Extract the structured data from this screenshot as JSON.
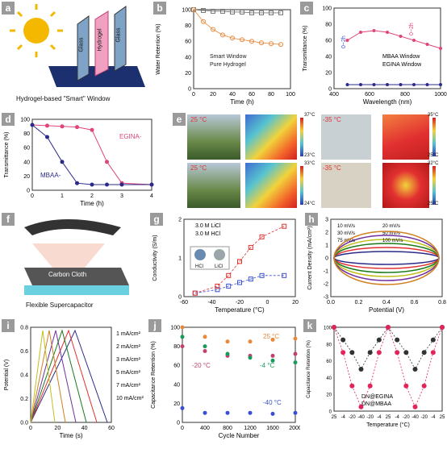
{
  "colors": {
    "orange": "#e8883a",
    "pink": "#e0457a",
    "navy": "#2b2b8a",
    "blue": "#3a4fd0",
    "gray": "#777777"
  },
  "panel_labels": [
    "a",
    "b",
    "c",
    "d",
    "e",
    "f",
    "g",
    "h",
    "i",
    "j",
    "k"
  ],
  "a": {
    "caption": "Hydrogel-based \"Smart\" Window",
    "layers": [
      "Glass",
      "Hydrogel",
      "Glass"
    ]
  },
  "b": {
    "xlabel": "Time (h)",
    "ylabel": "Water Retention (%)",
    "legend": [
      "Smart Window",
      "Pure Hydrogel"
    ],
    "xticks": [
      "0",
      "20",
      "40",
      "60",
      "80",
      "100"
    ],
    "yticks": [
      "0",
      "20",
      "40",
      "60",
      "80",
      "100"
    ]
  },
  "c": {
    "xlabel": "Wavelength (nm)",
    "ylabel": "Transmittance (%)",
    "legend": [
      "MBAA Window",
      "EGINA Window"
    ],
    "xticks": [
      "400",
      "600",
      "800",
      "1000"
    ],
    "yticks": [
      "0",
      "20",
      "40",
      "60",
      "80",
      "100"
    ],
    "annotations": [
      "0~2h",
      "0~2h"
    ]
  },
  "d": {
    "xlabel": "Time (h)",
    "ylabel": "Transmittance (%)",
    "series_labels": [
      "EGINA-",
      "MBAA-"
    ],
    "xticks": [
      "0",
      "1",
      "2",
      "3",
      "4"
    ],
    "yticks": [
      "0",
      "20",
      "40",
      "60",
      "80",
      "100"
    ]
  },
  "e": {
    "temps_left": [
      "25 °C",
      "25 °C"
    ],
    "temps_right": [
      "-35 °C",
      "-35 °C"
    ],
    "scale1": [
      "37°C",
      "23°C"
    ],
    "scale2": [
      "33°C",
      "24°C"
    ],
    "scale3": [
      "35°C",
      "25°C"
    ],
    "scale4": [
      "32°C",
      "25°C"
    ]
  },
  "f": {
    "caption": "Flexible Supercapacitor",
    "layer_label": "Carbon Cloth"
  },
  "g": {
    "xlabel": "Temperature (°C)",
    "ylabel": "Conductivity (S/m)",
    "legend": [
      "3.0 M LiCl",
      "3.0 M HCl"
    ],
    "xticks": [
      "-60",
      "-40",
      "-20",
      "0",
      "20"
    ],
    "yticks": [
      "0",
      "1",
      "2"
    ],
    "inset": [
      "HCl",
      "LiCl"
    ]
  },
  "h": {
    "xlabel": "Potential (V)",
    "ylabel": "Current Density (mA/cm²)",
    "legend": [
      "10 mV/s",
      "20 mV/s",
      "30 mV/s",
      "50 mV/s",
      "75 mV/s",
      "100 mV/s"
    ],
    "xticks": [
      "0.0",
      "0.2",
      "0.4",
      "0.6",
      "0.8"
    ],
    "yticks": [
      "-3",
      "-2",
      "-1",
      "0",
      "1",
      "2",
      "3"
    ]
  },
  "i": {
    "xlabel": "Time (s)",
    "ylabel": "Potential (V)",
    "legend": [
      "1 mA/cm²",
      "2 mA/cm²",
      "3 mA/cm²",
      "5 mA/cm²",
      "7 mA/cm²",
      "10 mA/cm²"
    ],
    "xticks": [
      "0",
      "20",
      "40",
      "60"
    ],
    "yticks": [
      "0.0",
      "0.2",
      "0.4",
      "0.6",
      "0.8"
    ]
  },
  "j": {
    "xlabel": "Cycle Number",
    "ylabel": "Capacitance Retention (%)",
    "labels": [
      "25 °C",
      "-20 °C",
      "-4 °C",
      "-40 °C"
    ],
    "xticks": [
      "0",
      "400",
      "800",
      "1200",
      "1600",
      "2000"
    ],
    "yticks": [
      "0",
      "20",
      "40",
      "60",
      "80",
      "100"
    ]
  },
  "k": {
    "xlabel": "Temperature (°C)",
    "ylabel": "Capacitance Retention (%)",
    "legend": [
      "DN@EGINA",
      "DN@MBAA"
    ],
    "xticks": [
      "25",
      "-4",
      "-20",
      "-40",
      "-20",
      "-4",
      "25",
      "-4",
      "-20",
      "-40",
      "-20",
      "-4",
      "25"
    ],
    "yticks": [
      "0",
      "20",
      "40",
      "60",
      "80",
      "100"
    ]
  },
  "chart_data": [
    {
      "type": "scatter",
      "panel": "b",
      "x": [
        0,
        10,
        20,
        30,
        40,
        50,
        60,
        70,
        80,
        90
      ],
      "series": [
        {
          "name": "Smart Window",
          "values": [
            100,
            99,
            98,
            98,
            97,
            97,
            96,
            96,
            96,
            96
          ]
        },
        {
          "name": "Pure Hydrogel",
          "values": [
            100,
            85,
            75,
            68,
            64,
            62,
            60,
            58,
            57,
            56
          ]
        }
      ],
      "xlim": [
        0,
        100
      ],
      "ylim": [
        0,
        100
      ]
    },
    {
      "type": "line",
      "panel": "c",
      "x": [
        400,
        500,
        600,
        700,
        800,
        900,
        1000,
        1100
      ],
      "series": [
        {
          "name": "MBAA Window",
          "values": [
            5,
            5,
            5,
            5,
            5,
            5,
            5,
            5
          ]
        },
        {
          "name": "EGINA Window",
          "values": [
            60,
            70,
            72,
            70,
            65,
            60,
            55,
            50
          ]
        }
      ],
      "xlim": [
        300,
        1100
      ],
      "ylim": [
        0,
        100
      ]
    },
    {
      "type": "scatter",
      "panel": "d",
      "x": [
        0,
        0.5,
        1,
        1.5,
        2,
        2.5,
        3,
        4
      ],
      "series": [
        {
          "name": "EGINA-",
          "values": [
            92,
            91,
            90,
            89,
            85,
            40,
            10,
            8
          ]
        },
        {
          "name": "MBAA-",
          "values": [
            92,
            75,
            40,
            10,
            8,
            8,
            8,
            8
          ]
        }
      ],
      "xlim": [
        0,
        4
      ],
      "ylim": [
        0,
        100
      ]
    },
    {
      "type": "scatter",
      "panel": "g",
      "x": [
        -60,
        -40,
        -30,
        -20,
        -10,
        0,
        20
      ],
      "series": [
        {
          "name": "3.0 M LiCl",
          "values": [
            0.1,
            0.2,
            0.3,
            0.4,
            0.5,
            0.6,
            0.6
          ]
        },
        {
          "name": "3.0 M HCl",
          "values": [
            0.1,
            0.3,
            0.6,
            1.0,
            1.4,
            1.7,
            2.0
          ]
        }
      ],
      "xlim": [
        -70,
        30
      ],
      "ylim": [
        0,
        2.2
      ]
    },
    {
      "type": "line",
      "panel": "i",
      "x": [
        0,
        10,
        20,
        30,
        40,
        50,
        60
      ],
      "series": [
        {
          "name": "1 mA/cm²",
          "values": [
            0,
            0.2,
            0.4,
            0.6,
            0.8,
            0.6,
            0.2
          ]
        }
      ],
      "xlim": [
        0,
        60
      ],
      "ylim": [
        0,
        0.8
      ]
    },
    {
      "type": "scatter",
      "panel": "j",
      "x": [
        0,
        400,
        800,
        1200,
        1600,
        2000
      ],
      "series": [
        {
          "name": "25 °C",
          "values": [
            100,
            90,
            85,
            85,
            87,
            88
          ]
        },
        {
          "name": "-20 °C",
          "values": [
            80,
            75,
            70,
            70,
            70,
            72
          ]
        },
        {
          "name": "-4 °C",
          "values": [
            90,
            80,
            72,
            68,
            65,
            63
          ]
        },
        {
          "name": "-40 °C",
          "values": [
            15,
            10,
            10,
            10,
            9,
            10
          ]
        }
      ],
      "xlim": [
        0,
        2000
      ],
      "ylim": [
        0,
        100
      ]
    },
    {
      "type": "line",
      "panel": "k",
      "categories": [
        "25",
        "-4",
        "-20",
        "-40",
        "-20",
        "-4",
        "25",
        "-4",
        "-20",
        "-40",
        "-20",
        "-4",
        "25"
      ],
      "series": [
        {
          "name": "DN@EGINA",
          "values": [
            100,
            85,
            70,
            50,
            70,
            85,
            100,
            85,
            70,
            50,
            70,
            85,
            100
          ]
        },
        {
          "name": "DN@MBAA",
          "values": [
            100,
            70,
            30,
            5,
            30,
            70,
            100,
            70,
            30,
            5,
            30,
            70,
            100
          ]
        }
      ],
      "ylim": [
        0,
        100
      ]
    }
  ]
}
